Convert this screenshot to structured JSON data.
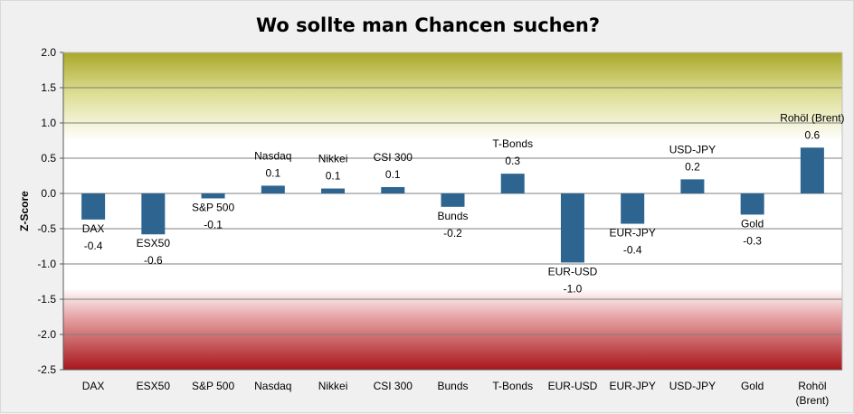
{
  "chart_data": {
    "type": "bar",
    "title": "Wo sollte man Chancen suchen?",
    "xlabel": "",
    "ylabel": "Z-Score",
    "ylim": [
      -2.5,
      2.0
    ],
    "yticks": [
      "2.0",
      "1.5",
      "1.0",
      "0.5",
      "0.0",
      "-0.5",
      "-1.0",
      "-1.5",
      "-2.0",
      "-2.5"
    ],
    "ytick_values": [
      2.0,
      1.5,
      1.0,
      0.5,
      0.0,
      -0.5,
      -1.0,
      -1.5,
      -2.0,
      -2.5
    ],
    "grid": true,
    "categories": [
      {
        "label": "DAX"
      },
      {
        "label": "ESX50"
      },
      {
        "label": "S&P 500"
      },
      {
        "label": "Nasdaq"
      },
      {
        "label": "Nikkei"
      },
      {
        "label": "CSI 300"
      },
      {
        "label": "Bunds"
      },
      {
        "label": "T-Bonds"
      },
      {
        "label": "EUR-USD"
      },
      {
        "label": "EUR-JPY"
      },
      {
        "label": "USD-JPY"
      },
      {
        "label": "Gold"
      },
      {
        "label": "Rohöl (Brent)",
        "label_lines": [
          "Rohöl",
          "(Brent)"
        ]
      }
    ],
    "values": [
      -0.37,
      -0.58,
      -0.07,
      0.11,
      0.07,
      0.09,
      -0.19,
      0.28,
      -0.98,
      -0.43,
      0.2,
      -0.3,
      0.65
    ],
    "data_labels": [
      "-0.4",
      "-0.6",
      "-0.1",
      "0.1",
      "0.1",
      "0.1",
      "-0.2",
      "0.3",
      "-1.0",
      "-0.4",
      "0.2",
      "-0.3",
      "0.6"
    ],
    "colors": {
      "bar": "#2e6590",
      "background": "#f0f0f0",
      "top_band": "#a9a82a",
      "bottom_band": "#a8161b",
      "grid": "#7f7f7f"
    }
  }
}
